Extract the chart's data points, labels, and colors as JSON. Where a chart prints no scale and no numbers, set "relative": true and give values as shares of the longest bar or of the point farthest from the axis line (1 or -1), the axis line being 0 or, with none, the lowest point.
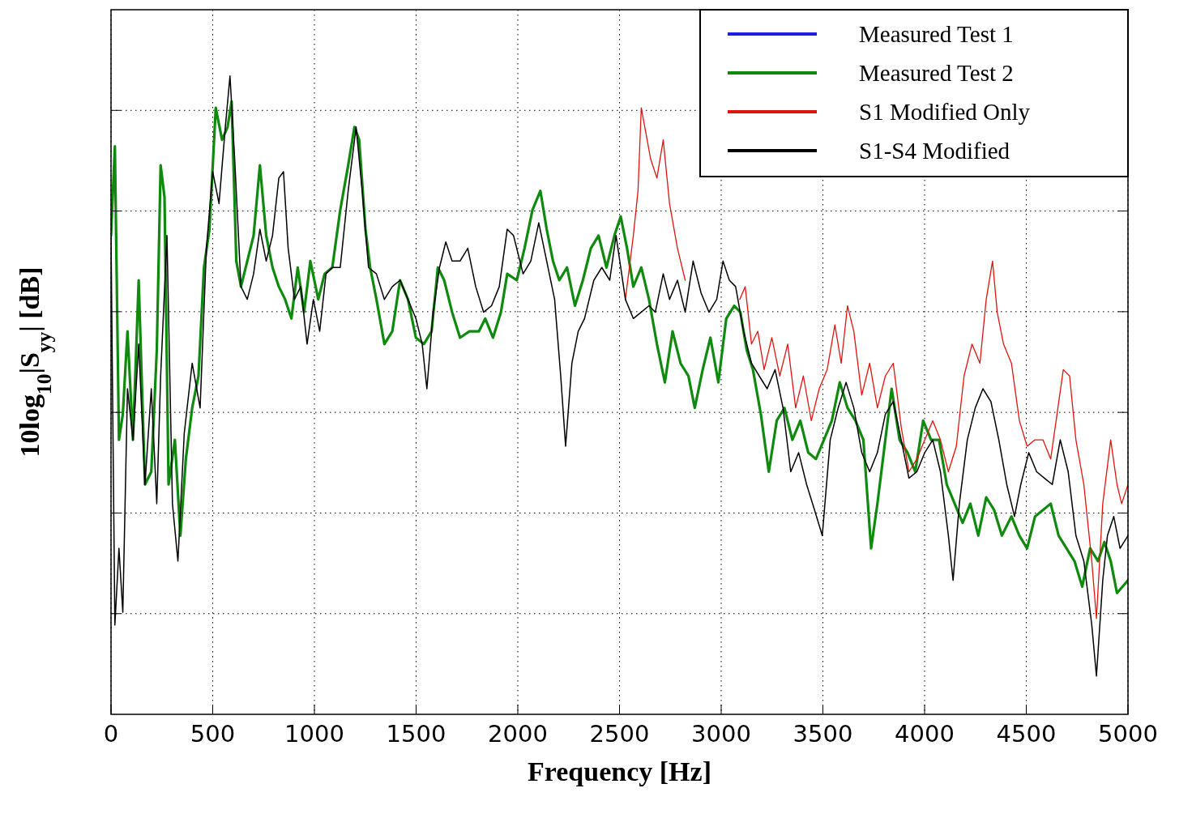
{
  "chart_data": {
    "type": "line",
    "relative": true,
    "xlabel": "Frequency [Hz]",
    "ylabel": "10log$_{10}$|S$_{yy}$| [dB]",
    "xlim": [
      0,
      5000
    ],
    "xticks": [
      0,
      500,
      1000,
      1500,
      2000,
      2500,
      3000,
      3500,
      4000,
      4500,
      5000
    ],
    "grid": true,
    "legend": "top right",
    "line_style": "solid",
    "series": [
      {
        "name": "Measured Test 1",
        "color": "#1f1fd8"
      },
      {
        "name": "Measured Test 2",
        "color": "#0f8a0f",
        "x": [
          0,
          19,
          39,
          58,
          81,
          108,
          136,
          167,
          198,
          225,
          244,
          263,
          283,
          314,
          341,
          368,
          399,
          430,
          457,
          484,
          515,
          546,
          573,
          593,
          616,
          639,
          670,
          701,
          732,
          763,
          794,
          825,
          856,
          887,
          918,
          949,
          980,
          1019,
          1050,
          1088,
          1127,
          1166,
          1197,
          1220,
          1251,
          1274,
          1305,
          1344,
          1383,
          1421,
          1460,
          1499,
          1538,
          1576,
          1607,
          1638,
          1677,
          1716,
          1762,
          1809,
          1840,
          1878,
          1917,
          1948,
          1995,
          2033,
          2072,
          2111,
          2142,
          2173,
          2204,
          2242,
          2281,
          2320,
          2359,
          2397,
          2436,
          2475,
          2506,
          2537,
          2568,
          2607,
          2645,
          2684,
          2723,
          2761,
          2800,
          2839,
          2870,
          2909,
          2947,
          2986,
          3025,
          3064,
          3094,
          3126,
          3156,
          3195,
          3234,
          3273,
          3311,
          3350,
          3389,
          3428,
          3466,
          3505,
          3544,
          3583,
          3621,
          3660,
          3699,
          3737,
          3768,
          3807,
          3838,
          3877,
          3916,
          3954,
          3993,
          4032,
          4071,
          4109,
          4148,
          4187,
          4225,
          4264,
          4303,
          4342,
          4380,
          4427,
          4466,
          4504,
          4543,
          4582,
          4620,
          4659,
          4698,
          4737,
          4775,
          4814,
          4853,
          4884,
          4915,
          4946,
          5000
        ],
        "values": [
          0.75,
          0.89,
          0.43,
          0.47,
          0.6,
          0.43,
          0.68,
          0.36,
          0.38,
          0.57,
          0.86,
          0.81,
          0.36,
          0.43,
          0.28,
          0.4,
          0.48,
          0.53,
          0.7,
          0.76,
          0.95,
          0.9,
          0.92,
          0.96,
          0.71,
          0.67,
          0.71,
          0.75,
          0.86,
          0.75,
          0.7,
          0.67,
          0.65,
          0.62,
          0.7,
          0.63,
          0.71,
          0.65,
          0.69,
          0.7,
          0.79,
          0.86,
          0.92,
          0.9,
          0.76,
          0.7,
          0.65,
          0.58,
          0.6,
          0.68,
          0.65,
          0.59,
          0.58,
          0.6,
          0.7,
          0.68,
          0.63,
          0.59,
          0.6,
          0.6,
          0.62,
          0.59,
          0.63,
          0.69,
          0.68,
          0.73,
          0.79,
          0.82,
          0.76,
          0.71,
          0.68,
          0.7,
          0.64,
          0.68,
          0.73,
          0.75,
          0.7,
          0.75,
          0.78,
          0.73,
          0.67,
          0.7,
          0.65,
          0.58,
          0.52,
          0.6,
          0.55,
          0.53,
          0.48,
          0.54,
          0.59,
          0.52,
          0.62,
          0.64,
          0.63,
          0.57,
          0.54,
          0.47,
          0.38,
          0.46,
          0.48,
          0.43,
          0.46,
          0.41,
          0.4,
          0.43,
          0.46,
          0.52,
          0.48,
          0.46,
          0.43,
          0.26,
          0.33,
          0.43,
          0.51,
          0.43,
          0.41,
          0.38,
          0.46,
          0.43,
          0.43,
          0.36,
          0.33,
          0.3,
          0.33,
          0.28,
          0.34,
          0.32,
          0.28,
          0.31,
          0.28,
          0.26,
          0.31,
          0.32,
          0.33,
          0.28,
          0.26,
          0.24,
          0.2,
          0.26,
          0.24,
          0.27,
          0.24,
          0.19,
          0.21
        ]
      },
      {
        "name": "S1 Modified Only",
        "color": "#e0140e",
        "x": [
          2529,
          2568,
          2591,
          2607,
          2630,
          2653,
          2684,
          2715,
          2746,
          2785,
          2823,
          2860,
          3091,
          3118,
          3149,
          3180,
          3211,
          3249,
          3288,
          3327,
          3366,
          3404,
          3443,
          3482,
          3521,
          3559,
          3590,
          3621,
          3652,
          3691,
          3730,
          3768,
          3807,
          3846,
          3885,
          3923,
          3962,
          4001,
          4040,
          4078,
          4117,
          4156,
          4194,
          4233,
          4272,
          4303,
          4334,
          4357,
          4388,
          4427,
          4466,
          4504,
          4543,
          4582,
          4620,
          4651,
          4682,
          4713,
          4744,
          4783,
          4822,
          4845,
          4876,
          4915,
          4946,
          4969,
          5000
        ],
        "values": [
          0.65,
          0.75,
          0.82,
          0.95,
          0.91,
          0.87,
          0.84,
          0.9,
          0.8,
          0.73,
          0.68,
          null,
          0.65,
          0.67,
          0.58,
          0.6,
          0.54,
          0.59,
          0.53,
          0.58,
          0.48,
          0.53,
          0.46,
          0.51,
          0.54,
          0.61,
          0.55,
          0.64,
          0.6,
          0.5,
          0.55,
          0.48,
          0.53,
          0.55,
          0.45,
          0.38,
          0.4,
          0.43,
          0.46,
          0.43,
          0.38,
          0.42,
          0.53,
          0.58,
          0.55,
          0.65,
          0.71,
          0.63,
          0.58,
          0.55,
          0.46,
          0.42,
          0.43,
          0.43,
          0.4,
          0.47,
          0.54,
          0.53,
          0.43,
          0.36,
          0.24,
          0.15,
          0.33,
          0.43,
          0.36,
          0.33,
          0.36
        ]
      },
      {
        "name": "S1-S4 Modified",
        "color": "#000000",
        "x": [
          0,
          19,
          39,
          58,
          81,
          108,
          136,
          167,
          198,
          225,
          244,
          275,
          302,
          329,
          360,
          399,
          438,
          469,
          500,
          531,
          562,
          585,
          608,
          639,
          670,
          701,
          732,
          763,
          794,
          825,
          848,
          871,
          902,
          933,
          964,
          995,
          1026,
          1057,
          1088,
          1127,
          1166,
          1205,
          1235,
          1266,
          1305,
          1344,
          1383,
          1421,
          1460,
          1499,
          1530,
          1553,
          1584,
          1615,
          1646,
          1677,
          1716,
          1754,
          1793,
          1832,
          1871,
          1909,
          1948,
          1979,
          2026,
          2064,
          2103,
          2142,
          2181,
          2211,
          2235,
          2266,
          2297,
          2328,
          2374,
          2413,
          2452,
          2483,
          2529,
          2568,
          2607,
          2645,
          2676,
          2715,
          2746,
          2785,
          2823,
          2862,
          2901,
          2940,
          2978,
          3009,
          3040,
          3071,
          3110,
          3149,
          3187,
          3226,
          3265,
          3304,
          3342,
          3381,
          3420,
          3459,
          3497,
          3536,
          3575,
          3614,
          3652,
          3691,
          3730,
          3768,
          3807,
          3846,
          3885,
          3923,
          3962,
          4001,
          4040,
          4078,
          4117,
          4140,
          4171,
          4210,
          4249,
          4287,
          4326,
          4365,
          4404,
          4442,
          4473,
          4512,
          4551,
          4589,
          4628,
          4667,
          4706,
          4744,
          4783,
          4822,
          4845,
          4876,
          4899,
          4930,
          4961,
          5000
        ],
        "values": [
          0.75,
          0.14,
          0.26,
          0.16,
          0.51,
          0.43,
          0.58,
          0.36,
          0.51,
          0.33,
          0.53,
          0.75,
          0.33,
          0.24,
          0.44,
          0.55,
          0.48,
          0.73,
          0.85,
          0.8,
          0.92,
          1.0,
          0.87,
          0.67,
          0.65,
          0.69,
          0.76,
          0.71,
          0.75,
          0.84,
          0.85,
          0.73,
          0.65,
          0.67,
          0.58,
          0.65,
          0.6,
          0.69,
          0.7,
          0.7,
          0.82,
          0.92,
          0.82,
          0.7,
          0.69,
          0.65,
          0.67,
          0.68,
          0.65,
          0.62,
          0.58,
          0.51,
          0.63,
          0.7,
          0.74,
          0.71,
          0.71,
          0.73,
          0.67,
          0.63,
          0.64,
          0.67,
          0.76,
          0.75,
          0.69,
          0.71,
          0.77,
          0.71,
          0.65,
          0.53,
          0.42,
          0.55,
          0.6,
          0.62,
          0.68,
          0.7,
          0.68,
          0.75,
          0.65,
          0.62,
          0.63,
          0.64,
          0.63,
          0.69,
          0.65,
          0.68,
          0.63,
          0.71,
          0.66,
          0.63,
          0.65,
          0.71,
          0.68,
          0.67,
          0.6,
          0.55,
          0.53,
          0.51,
          0.54,
          0.48,
          0.38,
          0.41,
          0.36,
          0.32,
          0.28,
          0.43,
          0.48,
          0.52,
          0.48,
          0.41,
          0.38,
          0.41,
          0.47,
          0.49,
          0.43,
          0.37,
          0.38,
          0.41,
          0.43,
          0.38,
          0.28,
          0.21,
          0.33,
          0.43,
          0.48,
          0.51,
          0.49,
          0.43,
          0.36,
          0.31,
          0.36,
          0.41,
          0.38,
          0.37,
          0.36,
          0.43,
          0.38,
          0.28,
          0.24,
          0.14,
          0.06,
          0.21,
          0.28,
          0.31,
          0.26,
          0.28
        ]
      }
    ]
  }
}
